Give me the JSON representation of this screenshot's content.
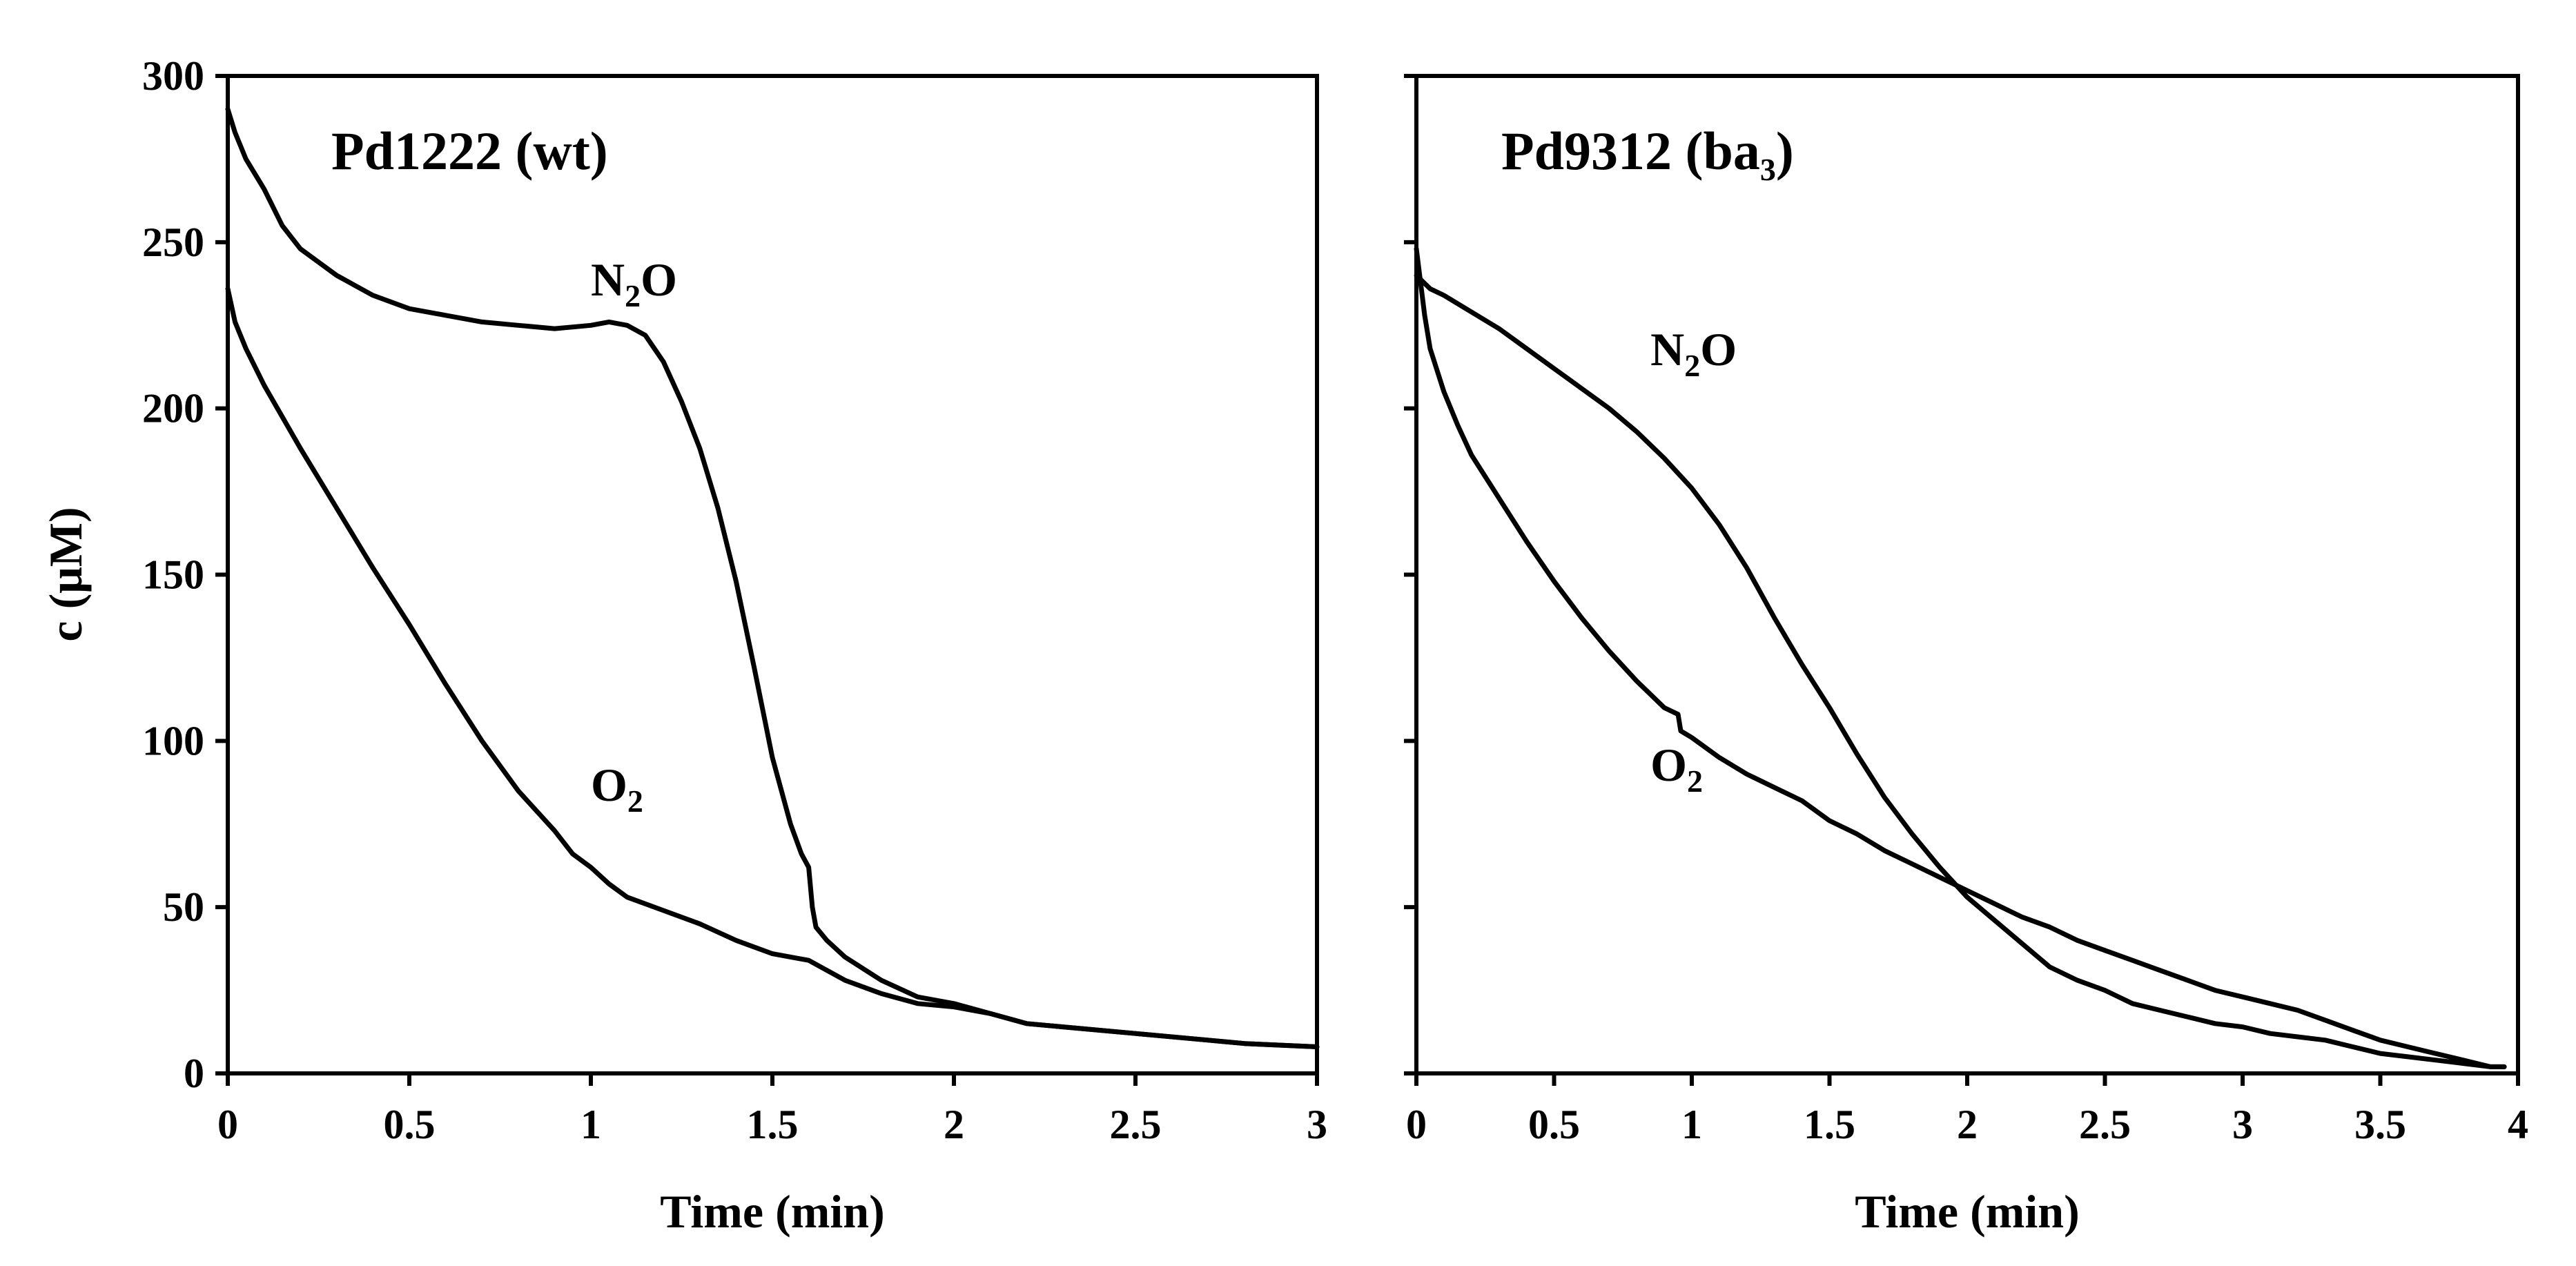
{
  "chart_data": [
    {
      "type": "line",
      "title": "Pd1222 (wt)",
      "title_main": "Pd1222 (wt)",
      "title_sub": "",
      "title_tail": "",
      "xlabel": "Time (min)",
      "ylabel": "c (μM)",
      "xlim": [
        0,
        3
      ],
      "ylim": [
        0,
        300
      ],
      "xticks": [
        0,
        0.5,
        1,
        1.5,
        2,
        2.5,
        3
      ],
      "xtick_labels": [
        "0",
        "0.5",
        "1",
        "1.5",
        "2",
        "2.5",
        "3"
      ],
      "yticks": [
        0,
        50,
        100,
        150,
        200,
        250,
        300
      ],
      "ytick_labels": [
        "0",
        "50",
        "100",
        "150",
        "200",
        "250",
        "300"
      ],
      "series": [
        {
          "name": "N2O",
          "label_main": "N",
          "label_sub": "2",
          "label_tail": "O",
          "label_at": [
            1.0,
            234
          ],
          "x": [
            0,
            0.02,
            0.05,
            0.1,
            0.15,
            0.2,
            0.3,
            0.4,
            0.5,
            0.6,
            0.7,
            0.8,
            0.9,
            1.0,
            1.05,
            1.1,
            1.15,
            1.2,
            1.25,
            1.3,
            1.35,
            1.4,
            1.45,
            1.5,
            1.55,
            1.58,
            1.6,
            1.61,
            1.62,
            1.65,
            1.7,
            1.8,
            1.9,
            2.0,
            2.1,
            2.2,
            2.3,
            2.5,
            2.7,
            2.8,
            2.9,
            3.0
          ],
          "values": [
            290,
            283,
            275,
            266,
            255,
            248,
            240,
            234,
            230,
            228,
            226,
            225,
            224,
            225,
            226,
            225,
            222,
            214,
            202,
            188,
            170,
            148,
            122,
            95,
            75,
            66,
            62,
            50,
            44,
            40,
            35,
            28,
            23,
            21,
            18,
            15,
            14,
            12,
            10,
            9,
            8.5,
            8
          ]
        },
        {
          "name": "O2",
          "label_main": "O",
          "label_sub": "2",
          "label_tail": "",
          "label_at": [
            1.0,
            82
          ],
          "x": [
            0,
            0.02,
            0.05,
            0.1,
            0.2,
            0.3,
            0.4,
            0.5,
            0.6,
            0.7,
            0.8,
            0.9,
            0.95,
            1.0,
            1.05,
            1.1,
            1.2,
            1.3,
            1.4,
            1.5,
            1.55,
            1.6,
            1.7,
            1.8,
            1.9,
            2.0,
            2.1,
            2.2,
            2.3,
            2.5,
            2.7,
            2.8,
            2.9,
            3.0
          ],
          "values": [
            236,
            226,
            218,
            207,
            188,
            170,
            152,
            135,
            117,
            100,
            85,
            73,
            66,
            62,
            57,
            53,
            49,
            45,
            40,
            36,
            35,
            34,
            28,
            24,
            21,
            20,
            18,
            15,
            14,
            12,
            10,
            9,
            8.5,
            8
          ]
        }
      ]
    },
    {
      "type": "line",
      "title": "Pd9312 (ba3)",
      "title_main": "Pd9312 (ba",
      "title_sub": "3",
      "title_tail": ")",
      "xlabel": "Time (min)",
      "ylabel": "",
      "xlim": [
        0,
        4
      ],
      "ylim": [
        0,
        300
      ],
      "xticks": [
        0,
        0.5,
        1,
        1.5,
        2,
        2.5,
        3,
        3.5,
        4
      ],
      "xtick_labels": [
        "0",
        "0.5",
        "1",
        "1.5",
        "2",
        "2.5",
        "3",
        "3.5",
        "4"
      ],
      "yticks": [
        0,
        50,
        100,
        150,
        200,
        250,
        300
      ],
      "ytick_labels": [],
      "series": [
        {
          "name": "N2O",
          "label_main": "N",
          "label_sub": "2",
          "label_tail": "O",
          "label_at": [
            0.85,
            213
          ],
          "x": [
            0,
            0.05,
            0.1,
            0.2,
            0.3,
            0.4,
            0.5,
            0.6,
            0.7,
            0.8,
            0.9,
            1.0,
            1.1,
            1.2,
            1.3,
            1.4,
            1.5,
            1.6,
            1.7,
            1.8,
            1.9,
            2.0,
            2.1,
            2.2,
            2.3,
            2.4,
            2.5,
            2.6,
            2.7,
            2.8,
            2.9,
            3.0,
            3.1,
            3.2,
            3.3,
            3.4,
            3.5,
            3.6,
            3.7,
            3.8,
            3.9,
            3.95
          ],
          "values": [
            240,
            236,
            234,
            229,
            224,
            218,
            212,
            206,
            200,
            193,
            185,
            176,
            165,
            152,
            137,
            123,
            110,
            96,
            83,
            72,
            62,
            53,
            46,
            39,
            32,
            28,
            25,
            21,
            19,
            17,
            15,
            14,
            12,
            11,
            10,
            8,
            6,
            5,
            4,
            3,
            2,
            2
          ]
        },
        {
          "name": "O2",
          "label_main": "O",
          "label_sub": "2",
          "label_tail": "",
          "label_at": [
            0.85,
            88
          ],
          "x": [
            0,
            0.03,
            0.05,
            0.1,
            0.15,
            0.2,
            0.3,
            0.4,
            0.5,
            0.6,
            0.7,
            0.8,
            0.9,
            0.95,
            0.96,
            1.0,
            1.1,
            1.2,
            1.3,
            1.4,
            1.5,
            1.6,
            1.7,
            1.8,
            1.9,
            2.0,
            2.1,
            2.2,
            2.3,
            2.4,
            2.5,
            2.6,
            2.7,
            2.8,
            2.9,
            3.0,
            3.1,
            3.2,
            3.3,
            3.4,
            3.5,
            3.6,
            3.7,
            3.8,
            3.9,
            3.95
          ],
          "values": [
            248,
            228,
            218,
            205,
            195,
            186,
            173,
            160,
            148,
            137,
            127,
            118,
            110,
            108,
            103,
            101,
            95,
            90,
            86,
            82,
            76,
            72,
            67,
            63,
            59,
            55,
            51,
            47,
            44,
            40,
            37,
            34,
            31,
            28,
            25,
            23,
            21,
            19,
            16,
            13,
            10,
            8,
            6,
            4,
            2,
            2
          ]
        }
      ]
    }
  ]
}
